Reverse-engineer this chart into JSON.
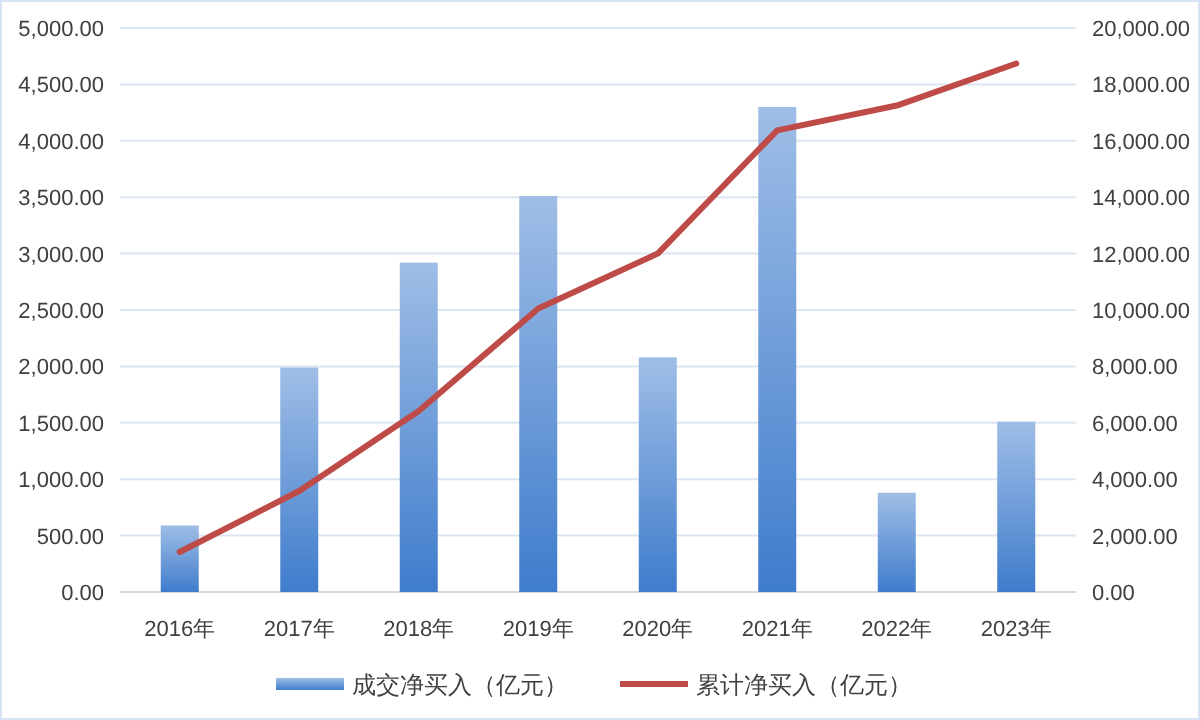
{
  "chart_data": {
    "type": "bar",
    "categories": [
      "2016年",
      "2017年",
      "2018年",
      "2019年",
      "2020年",
      "2021年",
      "2022年",
      "2023年"
    ],
    "series": [
      {
        "name": "成交净买入（亿元）",
        "color": "#3f7ccc",
        "values": [
          590,
          1990,
          2920,
          3510,
          2080,
          4300,
          880,
          1510
        ]
      },
      {
        "name": "累计净买入（亿元）",
        "type": "line",
        "axis": "y2",
        "color": "#be4b48",
        "values": [
          1420,
          3580,
          6420,
          10050,
          12000,
          16370,
          17250,
          18740
        ]
      }
    ],
    "ylim": [
      0,
      5000
    ],
    "yticks": [
      {
        "value": 0,
        "label": "0.00"
      },
      {
        "value": 500,
        "label": "500.00"
      },
      {
        "value": 1000,
        "label": "1,000.00"
      },
      {
        "value": 1500,
        "label": "1,500.00"
      },
      {
        "value": 2000,
        "label": "2,000.00"
      },
      {
        "value": 2500,
        "label": "2,500.00"
      },
      {
        "value": 3000,
        "label": "3,000.00"
      },
      {
        "value": 3500,
        "label": "3,500.00"
      },
      {
        "value": 4000,
        "label": "4,000.00"
      },
      {
        "value": 4500,
        "label": "4,500.00"
      },
      {
        "value": 5000,
        "label": "5,000.00"
      }
    ],
    "y2lim": [
      0,
      20000
    ],
    "y2ticks": [
      {
        "value": 0,
        "label": "0.00"
      },
      {
        "value": 2000,
        "label": "2,000.00"
      },
      {
        "value": 4000,
        "label": "4,000.00"
      },
      {
        "value": 6000,
        "label": "6,000.00"
      },
      {
        "value": 8000,
        "label": "8,000.00"
      },
      {
        "value": 10000,
        "label": "10,000.00"
      },
      {
        "value": 12000,
        "label": "12,000.00"
      },
      {
        "value": 14000,
        "label": "14,000.00"
      },
      {
        "value": 16000,
        "label": "16,000.00"
      },
      {
        "value": 18000,
        "label": "18,000.00"
      },
      {
        "value": 20000,
        "label": "20,000.00"
      }
    ],
    "grid": "y",
    "legend": "bottom"
  }
}
